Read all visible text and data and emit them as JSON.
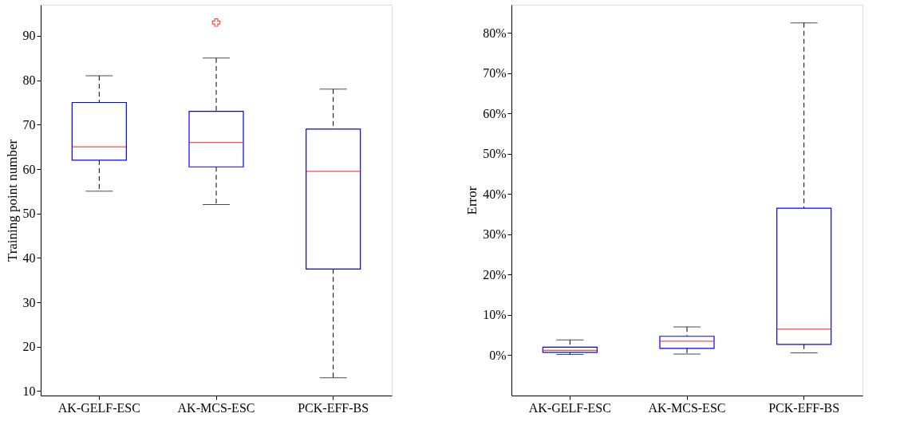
{
  "chart_data": [
    {
      "type": "box",
      "ylabel": "Training point number",
      "categories": [
        "AK-GELF-ESC",
        "AK-MCS-ESC",
        "PCK-EFF-BS"
      ],
      "ylim": [
        9,
        97
      ],
      "yticks": [
        10,
        20,
        30,
        40,
        50,
        60,
        70,
        80,
        90
      ],
      "grid": false,
      "series": [
        {
          "color": "#0000ff",
          "boxes": [
            {
              "low": 55,
              "q1": 62,
              "median": 65,
              "q3": 75,
              "high": 81
            },
            {
              "low": 52,
              "q1": 60.5,
              "median": 66,
              "q3": 73,
              "high": 85,
              "outliers": [
                93
              ]
            },
            {
              "low": 13,
              "q1": 37.5,
              "median": 59.5,
              "q3": 69,
              "high": 78
            }
          ]
        }
      ]
    },
    {
      "type": "box",
      "ylabel": "Error",
      "categories": [
        "AK-GELF-ESC",
        "AK-MCS-ESC",
        "PCK-EFF-BS"
      ],
      "ylim": [
        -10,
        87
      ],
      "yticks": [
        {
          "value": 0,
          "label": "0%"
        },
        {
          "value": 10,
          "label": "10%"
        },
        {
          "value": 20,
          "label": "20%"
        },
        {
          "value": 30,
          "label": "30%"
        },
        {
          "value": 40,
          "label": "40%"
        },
        {
          "value": 50,
          "label": "50%"
        },
        {
          "value": 60,
          "label": "60%"
        },
        {
          "value": 70,
          "label": "70%"
        },
        {
          "value": 80,
          "label": "80%"
        }
      ],
      "grid": false,
      "series": [
        {
          "color": "#0000ff",
          "boxes": [
            {
              "low": 0.2,
              "q1": 0.7,
              "median": 1.2,
              "q3": 2,
              "high": 3.8
            },
            {
              "low": 0.3,
              "q1": 1.7,
              "median": 3.5,
              "q3": 4.7,
              "high": 7
            },
            {
              "low": 0.6,
              "q1": 2.7,
              "median": 6.5,
              "q3": 36.5,
              "high": 82.5
            }
          ]
        }
      ]
    }
  ]
}
